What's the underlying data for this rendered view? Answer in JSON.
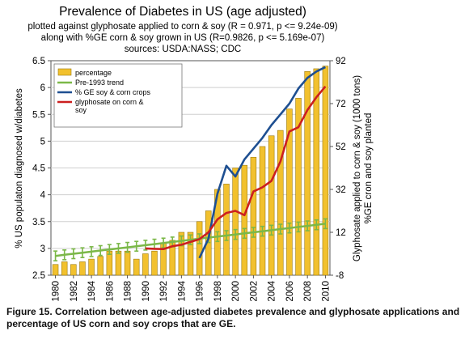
{
  "chart_data": {
    "type": "bar",
    "title": "Prevalence of Diabetes in US (age adjusted)",
    "subtitle_lines": [
      "plotted against glyphosate applied to corn & soy (R = 0.971, p <= 9.24e-09)",
      "along with %GE corn & soy grown in US (R=0.9826, p <= 5.169e-07)",
      "sources: USDA:NASS; CDC"
    ],
    "ylabel_left": "% US populaton diagnosed w/diabetes",
    "ylabel_right_lines": [
      "Glyphosate applied to corn & soy (1000 tons)",
      "%GE cron and soy planted"
    ],
    "ylim_left": [
      2.5,
      6.5
    ],
    "yticks_left": [
      "2.5",
      "3",
      "3.5",
      "4",
      "4.5",
      "5",
      "5.5",
      "6",
      "6.5"
    ],
    "ylim_right": [
      -8,
      92
    ],
    "yticks_right": [
      "-8",
      "12",
      "32",
      "52",
      "72",
      "92"
    ],
    "xticks": [
      "1980",
      "1982",
      "1984",
      "1986",
      "1988",
      "1990",
      "1992",
      "1994",
      "1996",
      "1998",
      "2000",
      "2002",
      "2004",
      "2006",
      "2008",
      "2010"
    ],
    "grid": true,
    "legend_position": "top-left",
    "x": [
      1980,
      1981,
      1982,
      1983,
      1984,
      1985,
      1986,
      1987,
      1988,
      1989,
      1990,
      1991,
      1992,
      1993,
      1994,
      1995,
      1996,
      1997,
      1998,
      1999,
      2000,
      2001,
      2002,
      2003,
      2004,
      2005,
      2006,
      2007,
      2008,
      2009,
      2010
    ],
    "series": [
      {
        "name": "percentage",
        "kind": "bar",
        "axis": "left",
        "color": "#f2c12e",
        "values": [
          2.7,
          2.75,
          2.7,
          2.75,
          2.8,
          2.85,
          2.95,
          2.95,
          2.95,
          2.8,
          2.9,
          2.95,
          3.1,
          3.15,
          3.3,
          3.3,
          3.5,
          3.7,
          4.1,
          4.2,
          4.5,
          4.55,
          4.7,
          4.9,
          5.1,
          5.2,
          5.6,
          5.8,
          6.3,
          6.35,
          6.4
        ]
      },
      {
        "name": "Pre-1993 trend",
        "kind": "line",
        "axis": "left",
        "color": "#7bb848",
        "error_bars": true,
        "values": [
          2.86,
          2.88,
          2.9,
          2.92,
          2.94,
          2.96,
          2.98,
          3.0,
          3.02,
          3.04,
          3.06,
          3.08,
          3.1,
          3.12,
          3.14,
          3.16,
          3.18,
          3.2,
          3.22,
          3.24,
          3.26,
          3.28,
          3.3,
          3.32,
          3.34,
          3.36,
          3.38,
          3.4,
          3.42,
          3.44,
          3.46
        ]
      },
      {
        "name": "% GE soy & corn crops",
        "kind": "line",
        "axis": "right",
        "color": "#1e4f91",
        "values": [
          null,
          null,
          null,
          null,
          null,
          null,
          null,
          null,
          null,
          null,
          null,
          null,
          null,
          null,
          null,
          null,
          0,
          9,
          30,
          43,
          38,
          46,
          51,
          56,
          62,
          67,
          72,
          79,
          84,
          87,
          89
        ]
      },
      {
        "name": "glyphosate on corn & soy",
        "kind": "line",
        "axis": "right",
        "color": "#cc1f1f",
        "values": [
          null,
          null,
          null,
          null,
          null,
          null,
          null,
          null,
          null,
          null,
          4.5,
          4.3,
          4.2,
          5.5,
          6.2,
          7.5,
          8.8,
          12,
          18,
          21,
          22,
          20,
          31,
          33,
          36,
          45,
          59,
          61,
          69,
          75,
          80
        ]
      }
    ]
  },
  "caption": "Figure 15. Correlation between age-adjusted diabetes prevalence and glyphosate applications and percentage of US corn and soy crops that are GE."
}
